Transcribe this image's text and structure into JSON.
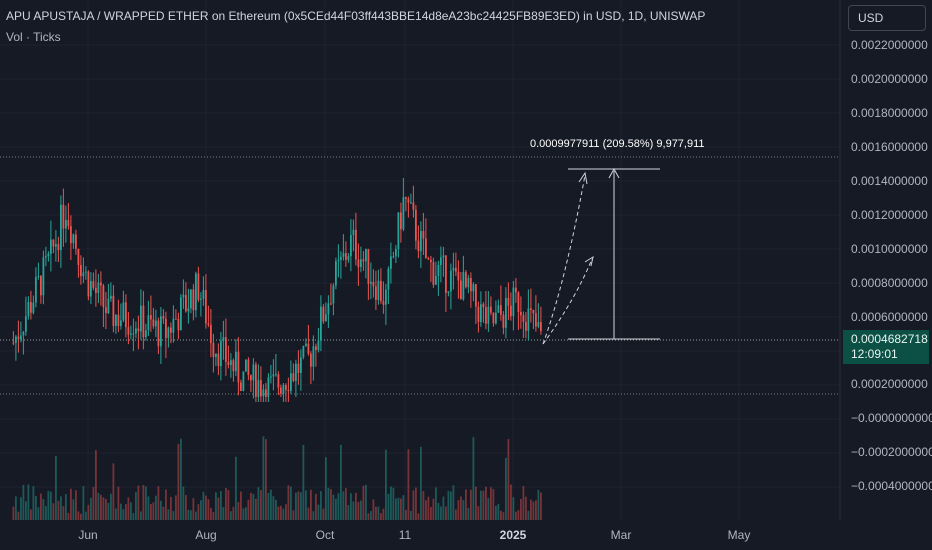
{
  "header": {
    "title": "APU APUSTAJA / WRAPPED ETHER on Ethereum (0x5CEd44F03ff443BBE14d8eA23bc24425FB89E3ED) in USD, 1D, UNISWAP",
    "subtitle": "Vol · Ticks"
  },
  "price_axis": {
    "currency_button": "USD",
    "ticks": [
      "0.0022000000",
      "0.0020000000",
      "0.0018000000",
      "0.0016000000",
      "0.0014000000",
      "0.0012000000",
      "0.0010000000",
      "0.0008000000",
      "0.0006000000",
      "0.0002000000",
      "−0.0000000000",
      "−0.0002000000",
      "−0.0004000000"
    ]
  },
  "time_axis": {
    "labels": [
      "Jun",
      "Aug",
      "Oct",
      "11",
      "2025",
      "Mar",
      "May"
    ]
  },
  "last_price": {
    "value": "0.0004682718",
    "countdown": "12:09:01"
  },
  "measure": {
    "label": "0.0009977911 (209.58%) 9,977,911"
  },
  "colors": {
    "up": "#26a69a",
    "down": "#ef5350",
    "background": "#161a25",
    "price_tag": "#0b4f45"
  },
  "chart_data": {
    "type": "candlestick",
    "symbol": "APU APUSTAJA / WRAPPED ETHER",
    "interval": "1D",
    "y_range": [
      -0.0004,
      0.0023
    ],
    "last_close": 0.0004682718,
    "anchors": [
      {
        "date": "2024-04-20",
        "close": 0.00045
      },
      {
        "date": "2024-05-10",
        "close": 0.00095
      },
      {
        "date": "2024-05-18",
        "close": 0.00125
      },
      {
        "date": "2024-05-28",
        "close": 0.00085
      },
      {
        "date": "2024-06-10",
        "close": 0.00062
      },
      {
        "date": "2024-06-25",
        "close": 0.00058
      },
      {
        "date": "2024-07-10",
        "close": 0.0005
      },
      {
        "date": "2024-07-28",
        "close": 0.00078
      },
      {
        "date": "2024-08-05",
        "close": 0.00045
      },
      {
        "date": "2024-08-20",
        "close": 0.00025
      },
      {
        "date": "2024-09-05",
        "close": 0.00018
      },
      {
        "date": "2024-09-25",
        "close": 0.00035
      },
      {
        "date": "2024-10-08",
        "close": 0.0008
      },
      {
        "date": "2024-10-18",
        "close": 0.00105
      },
      {
        "date": "2024-11-05",
        "close": 0.0007
      },
      {
        "date": "2024-11-15",
        "close": 0.0013
      },
      {
        "date": "2024-11-28",
        "close": 0.0009
      },
      {
        "date": "2024-12-15",
        "close": 0.0008
      },
      {
        "date": "2024-12-31",
        "close": 0.00055
      },
      {
        "date": "2025-01-15",
        "close": 0.0007
      },
      {
        "date": "2025-01-28",
        "close": 0.00047
      }
    ]
  }
}
